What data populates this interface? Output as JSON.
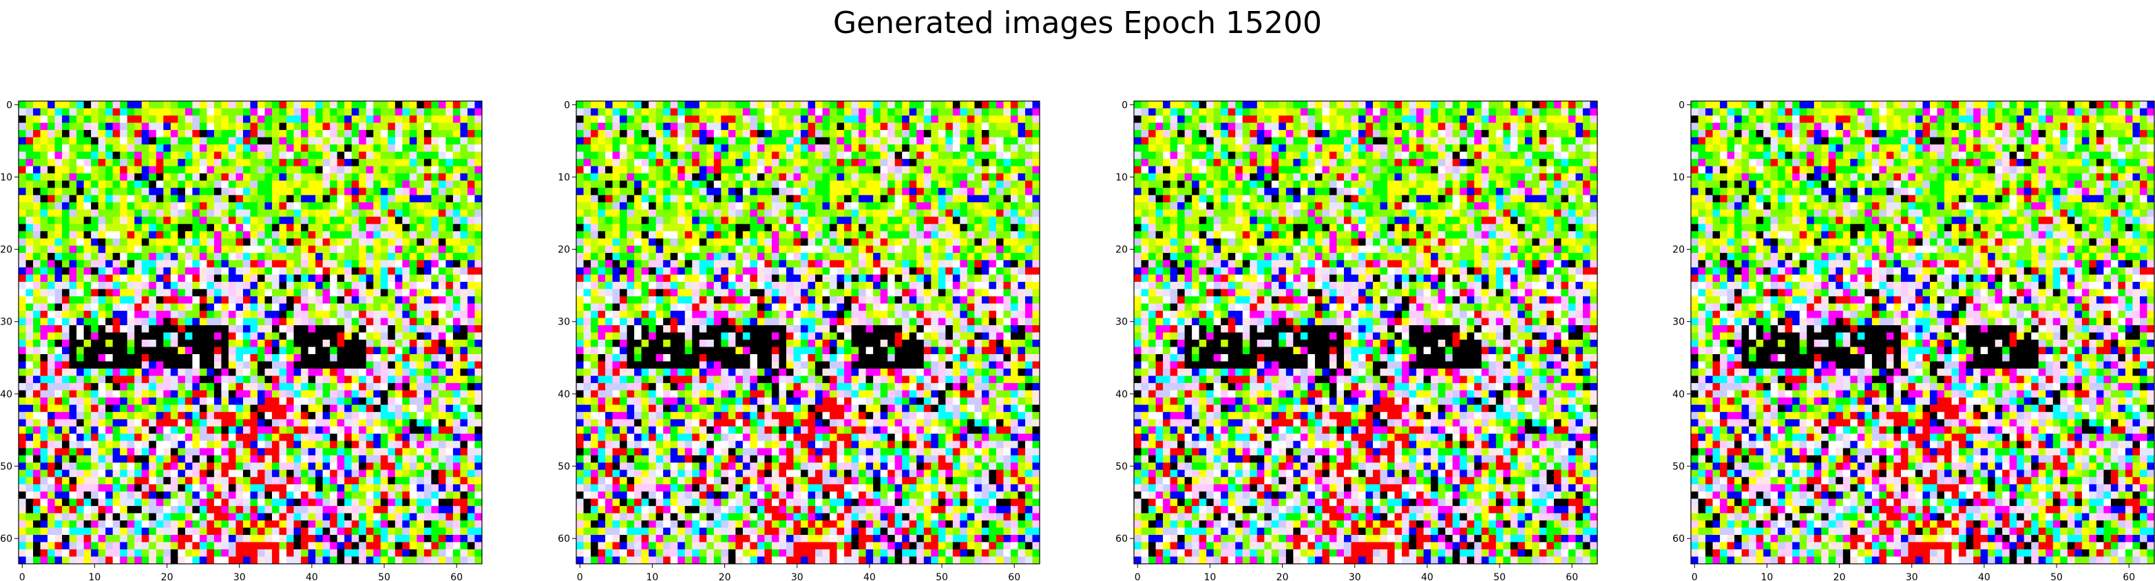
{
  "figure": {
    "title": "Generated images Epoch 15200"
  },
  "panels": [
    {
      "name": "generated-image-1"
    },
    {
      "name": "generated-image-2"
    },
    {
      "name": "generated-image-3"
    },
    {
      "name": "generated-image-4"
    }
  ],
  "image": {
    "resolution": 64,
    "palette": [
      "#ffffff",
      "#000000",
      "#ff0000",
      "#00ff00",
      "#0000ff",
      "#00ffff",
      "#ff00ff",
      "#ffff00",
      "#c8ff00",
      "#80ff00",
      "#e6e6ff",
      "#ffe6e6",
      "#ccccff",
      "#ffccff"
    ]
  },
  "axes": {
    "x_ticks": [
      0,
      10,
      20,
      30,
      40,
      50,
      60
    ],
    "y_ticks": [
      0,
      10,
      20,
      30,
      40,
      50,
      60
    ],
    "x_range": [
      -0.5,
      63.5
    ],
    "y_range": [
      -0.5,
      63.5
    ]
  }
}
